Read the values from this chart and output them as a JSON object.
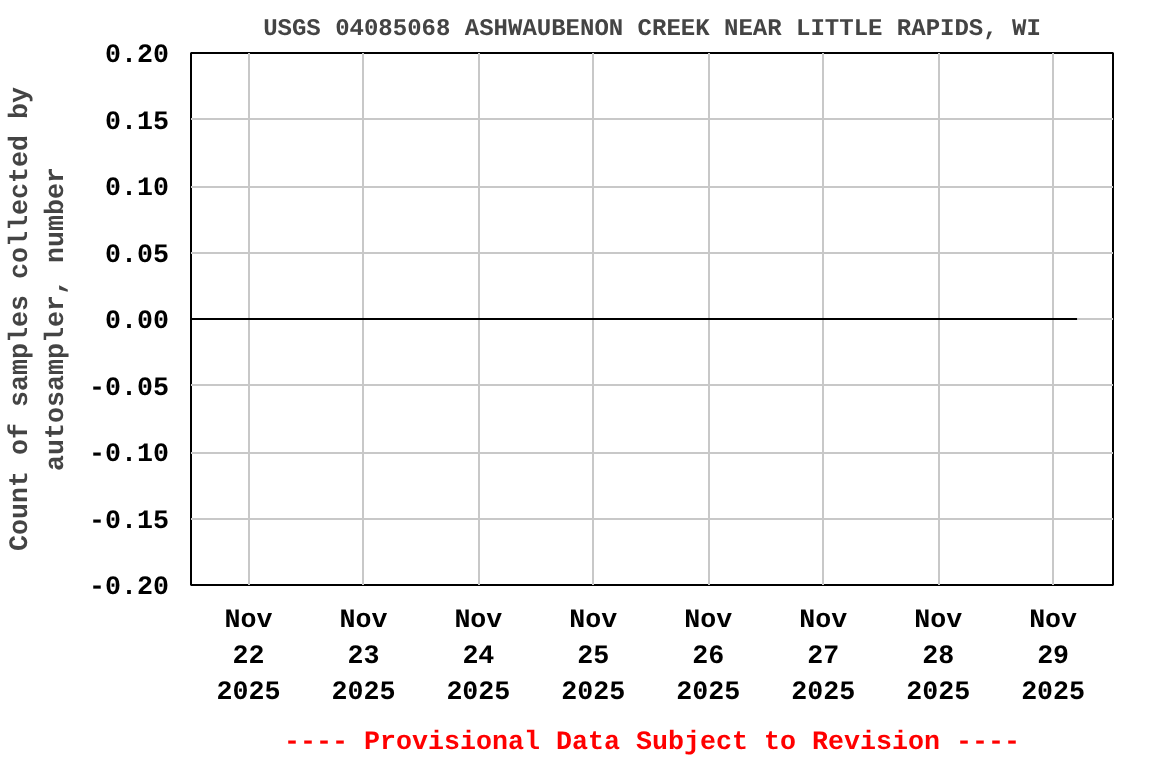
{
  "chart_data": {
    "type": "line",
    "title": "USGS 04085068 ASHWAUBENON CREEK NEAR LITTLE RAPIDS, WI",
    "ylabel": "Count of samples collected by\nautosampler, number",
    "x": [
      "2025-11-21T12:00",
      "2025-11-23T00:00",
      "2025-11-25T00:00",
      "2025-11-27T00:00",
      "2025-11-29T05:00"
    ],
    "series": [
      {
        "color": "#000000",
        "values": [
          0,
          0,
          0,
          0,
          0
        ]
      }
    ],
    "xlim": [
      "2025-11-21T12:00",
      "2025-11-29T12:30"
    ],
    "xticks": [
      {
        "value": "2025-11-22",
        "label": "Nov\n22\n2025"
      },
      {
        "value": "2025-11-23",
        "label": "Nov\n23\n2025"
      },
      {
        "value": "2025-11-24",
        "label": "Nov\n24\n2025"
      },
      {
        "value": "2025-11-25",
        "label": "Nov\n25\n2025"
      },
      {
        "value": "2025-11-26",
        "label": "Nov\n26\n2025"
      },
      {
        "value": "2025-11-27",
        "label": "Nov\n27\n2025"
      },
      {
        "value": "2025-11-28",
        "label": "Nov\n28\n2025"
      },
      {
        "value": "2025-11-29",
        "label": "Nov\n29\n2025"
      }
    ],
    "ylim": [
      -0.2,
      0.2
    ],
    "yticks": [
      {
        "value": -0.2,
        "label": "-0.20"
      },
      {
        "value": -0.15,
        "label": "-0.15"
      },
      {
        "value": -0.1,
        "label": "-0.10"
      },
      {
        "value": -0.05,
        "label": "-0.05"
      },
      {
        "value": 0,
        "label": "0.00"
      },
      {
        "value": 0.05,
        "label": "0.05"
      },
      {
        "value": 0.1,
        "label": "0.10"
      },
      {
        "value": 0.15,
        "label": "0.15"
      },
      {
        "value": 0.2,
        "label": "0.20"
      }
    ],
    "grid": true,
    "marker": "none",
    "line_style": "solid",
    "annotations": [
      "---- Provisional Data Subject to Revision ----"
    ]
  }
}
